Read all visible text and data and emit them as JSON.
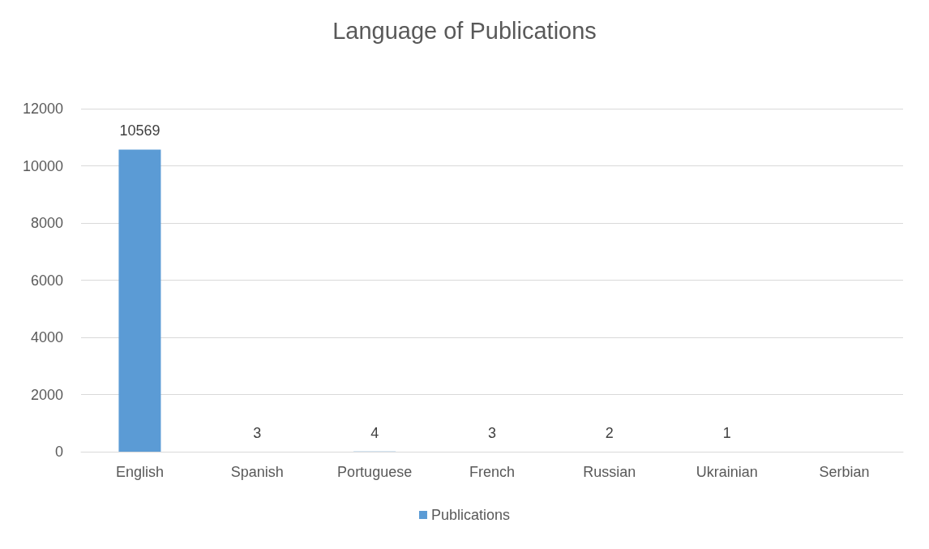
{
  "chart_data": {
    "type": "bar",
    "title": "Language of Publications",
    "categories": [
      "English",
      "Spanish",
      "Portuguese",
      "French",
      "Russian",
      "Ukrainian",
      "Serbian"
    ],
    "series": [
      {
        "name": "Publications",
        "color": "#5b9bd5",
        "values": [
          10569,
          3,
          4,
          3,
          2,
          1,
          null
        ]
      }
    ],
    "ylim": [
      0,
      12000
    ],
    "yticks": [
      0,
      2000,
      4000,
      6000,
      8000,
      10000,
      12000
    ],
    "grid": "y",
    "legend": "bottom",
    "data_labels": true
  }
}
